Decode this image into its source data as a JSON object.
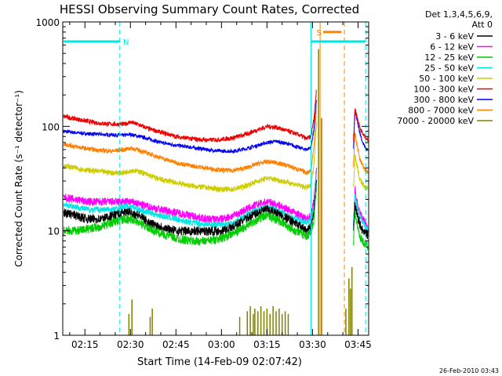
{
  "chart_data": {
    "type": "line",
    "title": "HESSI Observing Summary Count Rates, Corrected",
    "xlabel": "Start Time (14-Feb-09 02:07:42)",
    "ylabel": "Corrected Count Rate (s⁻¹ detector⁻¹)",
    "yscale": "log",
    "ylim": [
      1,
      1000
    ],
    "xlim_minutes": [
      7.7,
      108.5
    ],
    "xticks": [
      {
        "minute": 15,
        "label": "02:15"
      },
      {
        "minute": 30,
        "label": "02:30"
      },
      {
        "minute": 45,
        "label": "02:45"
      },
      {
        "minute": 60,
        "label": "03:00"
      },
      {
        "minute": 75,
        "label": "03:15"
      },
      {
        "minute": 90,
        "label": "03:30"
      },
      {
        "minute": 105,
        "label": "03:45"
      }
    ],
    "yticks": [
      {
        "value": 1,
        "label": "1"
      },
      {
        "value": 10,
        "label": "10"
      },
      {
        "value": 100,
        "label": "100"
      },
      {
        "value": 1000,
        "label": "1000"
      }
    ],
    "legend": {
      "placement": "right",
      "header": [
        "Det 1,3,4,5,6,9,",
        "Att 0"
      ],
      "entries": [
        {
          "label": "3 - 6 keV",
          "color": "#000000"
        },
        {
          "label": "6 - 12 keV",
          "color": "#ff00ff"
        },
        {
          "label": "12 - 25 keV",
          "color": "#00cc00"
        },
        {
          "label": "25 - 50 keV",
          "color": "#00e5e5"
        },
        {
          "label": "50 - 100 keV",
          "color": "#cccc00"
        },
        {
          "label": "100 - 300 keV",
          "color": "#ee0000"
        },
        {
          "label": "300 - 800 keV",
          "color": "#0000ee"
        },
        {
          "label": "800 - 7000 keV",
          "color": "#ff8000"
        },
        {
          "label": "7000 - 20000 keV",
          "color": "#808000"
        }
      ]
    },
    "x_minutes": [
      8,
      12,
      16,
      20,
      24,
      28,
      30,
      33,
      36,
      40,
      45,
      50,
      55,
      60,
      64,
      68,
      72,
      75,
      78,
      82,
      86,
      88,
      89.5,
      90.5,
      91.3
    ],
    "series": [
      {
        "name": "300 - 800 keV",
        "color": "#0000ee",
        "values": [
          90,
          87,
          85,
          84,
          83,
          82,
          84,
          80,
          76,
          70,
          66,
          63,
          60,
          58,
          58,
          61,
          66,
          70,
          72,
          68,
          62,
          60,
          63,
          95,
          180
        ]
      },
      {
        "name": "100 - 300 keV",
        "color": "#ee0000",
        "values": [
          125,
          118,
          112,
          107,
          105,
          105,
          110,
          103,
          95,
          88,
          80,
          76,
          74,
          75,
          78,
          84,
          93,
          100,
          98,
          90,
          82,
          76,
          80,
          120,
          230
        ]
      },
      {
        "name": "800 - 7000 keV",
        "color": "#ff8000",
        "values": [
          68,
          64,
          61,
          59,
          58,
          60,
          62,
          59,
          55,
          50,
          45,
          42,
          40,
          38,
          38,
          40,
          44,
          46,
          45,
          42,
          38,
          36,
          38,
          65,
          160
        ]
      },
      {
        "name": "50 - 100 keV",
        "color": "#cccc00",
        "values": [
          42,
          40,
          38,
          37,
          36,
          36,
          38,
          37,
          34,
          31,
          29,
          27,
          26,
          25,
          25,
          27,
          30,
          32,
          31,
          29,
          27,
          26,
          27,
          45,
          110
        ]
      },
      {
        "name": "6 - 12 keV",
        "color": "#ff00ff",
        "values": [
          21,
          20,
          19,
          19,
          19,
          19,
          19,
          18,
          17,
          16,
          15,
          14,
          13,
          13,
          14,
          16,
          18,
          19,
          18,
          16,
          14,
          13,
          14,
          20,
          40
        ]
      },
      {
        "name": "25 - 50 keV",
        "color": "#00e5e5",
        "values": [
          18,
          17,
          16,
          16,
          16,
          17,
          17,
          16,
          15,
          14,
          13,
          12,
          11.5,
          11.5,
          12,
          14,
          16,
          17,
          16,
          14,
          12.5,
          12,
          12.5,
          17,
          35
        ]
      },
      {
        "name": "3 - 6 keV",
        "color": "#000000",
        "values": [
          15,
          14,
          13,
          13,
          14,
          15,
          15,
          14,
          12,
          11,
          10,
          10,
          10,
          10,
          11,
          13,
          15,
          16,
          15,
          13,
          11,
          10,
          11,
          15,
          30
        ]
      },
      {
        "name": "12 - 25 keV",
        "color": "#00cc00",
        "values": [
          10,
          10,
          10.5,
          11,
          12,
          13,
          13,
          12,
          10.5,
          9.5,
          8.5,
          8,
          8,
          8.5,
          9.5,
          11,
          13,
          14,
          13,
          11,
          9.5,
          9,
          9.5,
          13,
          28
        ]
      }
    ],
    "series_after_gap": {
      "x_minutes": [
        103.5,
        104,
        104.5,
        105.5,
        106.5,
        107.5,
        108.3
      ],
      "values": {
        "300 - 800 keV": [
          60,
          140,
          120,
          90,
          70,
          62,
          58
        ],
        "100 - 300 keV": [
          75,
          150,
          130,
          100,
          85,
          78,
          74
        ],
        "800 - 7000 keV": [
          40,
          90,
          70,
          50,
          42,
          38,
          36
        ],
        "50 - 100 keV": [
          25,
          55,
          45,
          32,
          28,
          26,
          25
        ],
        "6 - 12 keV": [
          12,
          25,
          20,
          15,
          13,
          12,
          11
        ],
        "25 - 50 keV": [
          11,
          22,
          18,
          14,
          12,
          11,
          10
        ],
        "3 - 6 keV": [
          10,
          18,
          15,
          12,
          10,
          9.5,
          9
        ],
        "12 - 25 keV": [
          8,
          15,
          12,
          9,
          8,
          7.5,
          7
        ]
      }
    },
    "spike_series": {
      "name": "7000 - 20000 keV",
      "color": "#808000",
      "bursts": [
        {
          "x_minute": 29.5,
          "value": 1.6
        },
        {
          "x_minute": 30.5,
          "value": 2.2
        },
        {
          "x_minute": 36.5,
          "value": 1.5
        },
        {
          "x_minute": 37.2,
          "value": 1.8
        },
        {
          "x_minute": 66,
          "value": 1.5
        },
        {
          "x_minute": 68.5,
          "value": 1.7
        },
        {
          "x_minute": 69.5,
          "value": 1.9
        },
        {
          "x_minute": 70.5,
          "value": 1.6
        },
        {
          "x_minute": 71,
          "value": 1.8
        },
        {
          "x_minute": 72,
          "value": 1.7
        },
        {
          "x_minute": 73,
          "value": 1.9
        },
        {
          "x_minute": 74,
          "value": 1.7
        },
        {
          "x_minute": 75,
          "value": 1.8
        },
        {
          "x_minute": 76,
          "value": 1.6
        },
        {
          "x_minute": 77,
          "value": 1.9
        },
        {
          "x_minute": 78,
          "value": 1.7
        },
        {
          "x_minute": 79,
          "value": 1.8
        },
        {
          "x_minute": 80,
          "value": 1.6
        },
        {
          "x_minute": 81,
          "value": 1.7
        },
        {
          "x_minute": 82,
          "value": 1.6
        },
        {
          "x_minute": 92,
          "value": 550
        },
        {
          "x_minute": 93,
          "value": 120
        },
        {
          "x_minute": 101,
          "value": 1.8
        },
        {
          "x_minute": 102,
          "value": 3.5
        },
        {
          "x_minute": 102.5,
          "value": 2.8
        },
        {
          "x_minute": 103,
          "value": 4.5
        }
      ]
    },
    "flags": [
      {
        "label": "N",
        "type": "bar",
        "color": "#00e5e5",
        "x_start_minute": 8,
        "x_end_minute": 26.5,
        "level": 650
      },
      {
        "label": "",
        "type": "bar",
        "color": "#00e5e5",
        "x_start_minute": 89.5,
        "x_end_minute": 107.5,
        "level": 650
      },
      {
        "label": "S",
        "type": "bar",
        "color": "#ff8000",
        "x_start_minute": 93.5,
        "x_end_minute": 99.5,
        "level": 800
      }
    ],
    "vertical_lines": [
      {
        "x_minute": 26.5,
        "color": "#00e5e5",
        "style": "dashed"
      },
      {
        "x_minute": 89.5,
        "color": "#00e5e5",
        "style": "solid"
      },
      {
        "x_minute": 107.5,
        "color": "#00e5e5",
        "style": "dashed"
      },
      {
        "x_minute": 92.5,
        "color": "#ff8000",
        "style": "solid"
      },
      {
        "x_minute": 100.5,
        "color": "#ff8000",
        "style": "dashed"
      }
    ],
    "footer_timestamp": "26-Feb-2010 03:43"
  }
}
